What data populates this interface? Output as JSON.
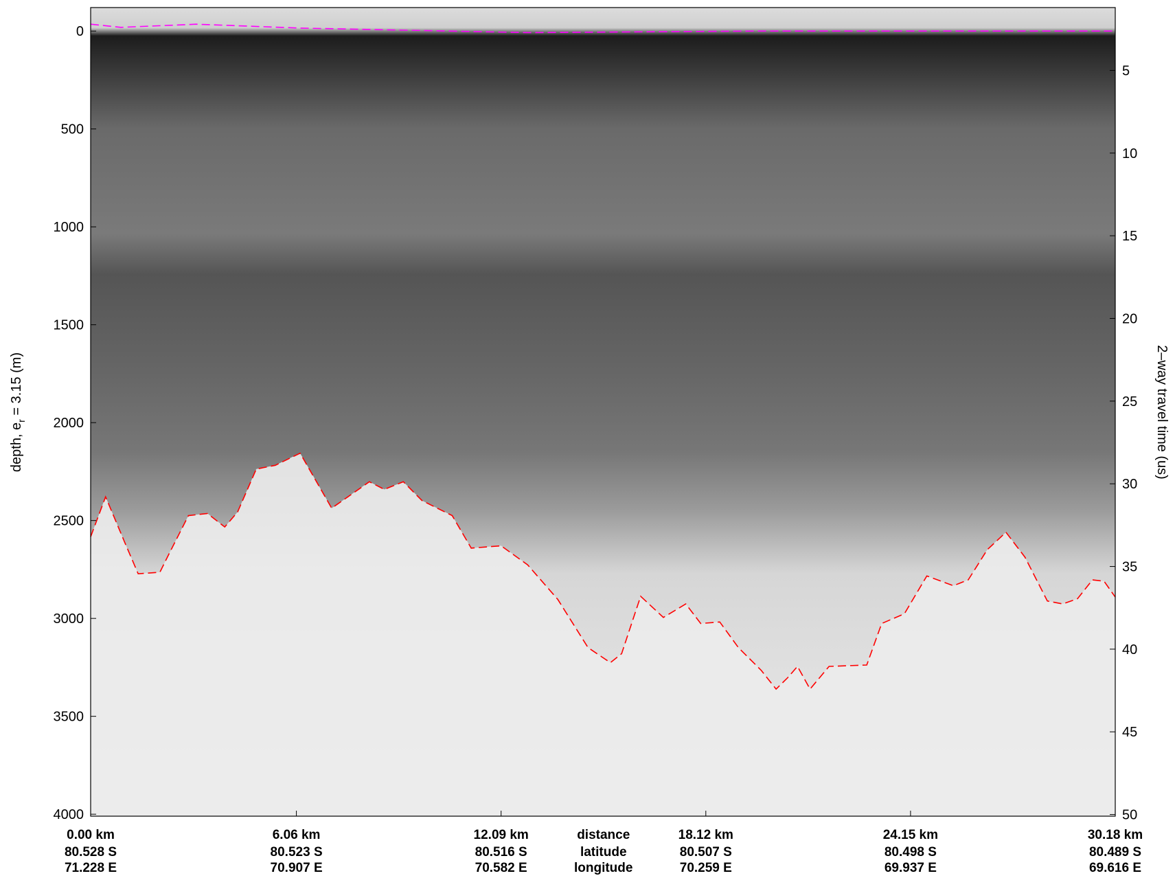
{
  "chart_data": {
    "type": "line",
    "ylabel": [
      "depth, e",
      "r",
      " = 3.15 (m)"
    ],
    "y2label": "2–way travel time (us)",
    "x_row_labels": [
      "distance",
      "latitude",
      "longitude"
    ],
    "xlim": [
      0,
      30.18
    ],
    "xticks": [
      {
        "value": 0,
        "label": "0.00 km"
      },
      {
        "value": 6.06,
        "label": "6.06 km"
      },
      {
        "value": 12.09,
        "label": "12.09 km"
      },
      {
        "value": 18.12,
        "label": "18.12 km"
      },
      {
        "value": 24.15,
        "label": "24.15 km"
      },
      {
        "value": 30.18,
        "label": "30.18 km"
      }
    ],
    "latitudes": [
      "80.528 S",
      "80.523 S",
      "80.516 S",
      "80.507 S",
      "80.498 S",
      "80.489 S"
    ],
    "longitudes": [
      "71.228 E",
      "70.907 E",
      "70.582 E",
      "70.259 E",
      "69.937 E",
      "69.616 E"
    ],
    "ylim": [
      -120,
      4010
    ],
    "y_inverted": true,
    "yticks": [
      0,
      500,
      1000,
      1500,
      2000,
      2500,
      3000,
      3500,
      4000
    ],
    "y2lim": [
      1.2,
      50.1
    ],
    "y2ticks": [
      5,
      10,
      15,
      20,
      25,
      30,
      35,
      40,
      45,
      50
    ],
    "series": [
      {
        "color": "#ff00ff",
        "dash": true,
        "x": [
          0,
          0.89,
          3.11,
          6.21,
          12.87,
          19.53,
          30.18
        ],
        "values": [
          -35,
          -19,
          -35,
          -15,
          8,
          0,
          0
        ]
      },
      {
        "color": "#ff0000",
        "dash": true,
        "x": [
          0,
          0.44,
          1.0,
          1.4,
          2.04,
          2.26,
          2.88,
          3.44,
          3.95,
          4.33,
          4.88,
          5.44,
          6.17,
          7.1,
          8.21,
          8.65,
          9.21,
          9.76,
          10.65,
          11.21,
          12.09,
          12.87,
          13.76,
          14.65,
          15.31,
          15.64,
          16.2,
          16.87,
          17.53,
          17.97,
          18.53,
          19.08,
          19.75,
          20.19,
          20.53,
          20.82,
          21.19,
          21.75,
          22.86,
          23.3,
          23.97,
          24.63,
          25.41,
          25.85,
          26.41,
          26.96,
          27.52,
          28.18,
          28.63,
          29.07,
          29.51,
          29.85,
          30.18
        ],
        "values": [
          2583,
          2379,
          2610,
          2772,
          2764,
          2687,
          2475,
          2464,
          2533,
          2456,
          2237,
          2218,
          2156,
          2437,
          2302,
          2341,
          2302,
          2398,
          2475,
          2641,
          2629,
          2726,
          2903,
          3149,
          3226,
          3180,
          2887,
          2995,
          2926,
          3026,
          3018,
          3149,
          3265,
          3361,
          3303,
          3245,
          3361,
          3245,
          3238,
          3026,
          2976,
          2783,
          2833,
          2803,
          2649,
          2560,
          2687,
          2911,
          2926,
          2899,
          2803,
          2810,
          2891
        ]
      }
    ]
  }
}
